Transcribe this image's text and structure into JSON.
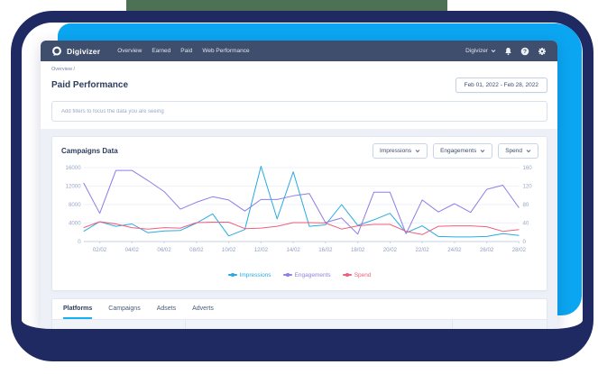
{
  "frame": {
    "navy": "#1f2a63",
    "blue": "#0ba6f1",
    "green": "#4d7154"
  },
  "navbar": {
    "brand": "Digivizer",
    "items": [
      "Overview",
      "Earned",
      "Paid",
      "Web Performance"
    ],
    "account_label": "Digivizer"
  },
  "breadcrumb": "Overview /",
  "page": {
    "title": "Paid Performance",
    "date_range": "Feb 01, 2022 - Feb 28, 2022"
  },
  "filter": {
    "placeholder": "Add filters to focus the data you are seeing"
  },
  "campaigns": {
    "title": "Campaigns Data",
    "dropdowns": [
      "Impressions",
      "Engagements",
      "Spend"
    ]
  },
  "chart_data": {
    "type": "line",
    "title": "Campaigns Data",
    "days": 28,
    "x_tick_labels": [
      "02/02",
      "04/02",
      "06/02",
      "08/02",
      "10/02",
      "12/02",
      "14/02",
      "16/02",
      "18/02",
      "20/02",
      "22/02",
      "24/02",
      "26/02",
      "28/02"
    ],
    "axes": {
      "left": {
        "max": 16000,
        "ticks": [
          0,
          4000,
          8000,
          12000,
          16000
        ]
      },
      "right": {
        "max": 160,
        "ticks": [
          0,
          40,
          80,
          120,
          160
        ]
      }
    },
    "grid": true,
    "legend_position": "bottom",
    "series": [
      {
        "name": "Impressions",
        "axis": "left",
        "color": "#29abe2",
        "values": [
          2200,
          4300,
          3300,
          3800,
          1900,
          2300,
          2400,
          4000,
          6000,
          1200,
          2600,
          16300,
          4900,
          15100,
          3300,
          3600,
          8000,
          3500,
          4700,
          6100,
          1900,
          3400,
          1100,
          1000,
          1000,
          1100,
          1700,
          1300
        ]
      },
      {
        "name": "Engagements",
        "axis": "left",
        "color": "#8f7ee8",
        "values": [
          12700,
          6100,
          15400,
          15400,
          13200,
          10800,
          7000,
          8500,
          9700,
          9000,
          6600,
          9100,
          9100,
          9900,
          10400,
          4100,
          5100,
          1600,
          10700,
          10700,
          1700,
          9000,
          6400,
          8200,
          6300,
          11300,
          12200,
          7300
        ]
      },
      {
        "name": "Spend",
        "axis": "right",
        "color": "#ef5f7c",
        "values": [
          30,
          43,
          38,
          30,
          27,
          30,
          29,
          41,
          42,
          42,
          28,
          29,
          33,
          41,
          41,
          40,
          27,
          34,
          37,
          37,
          22,
          15,
          33,
          34,
          34,
          32,
          22,
          26
        ]
      }
    ]
  },
  "tabs": {
    "items": [
      "Platforms",
      "Campaigns",
      "Adsets",
      "Adverts"
    ],
    "active_index": 0
  }
}
